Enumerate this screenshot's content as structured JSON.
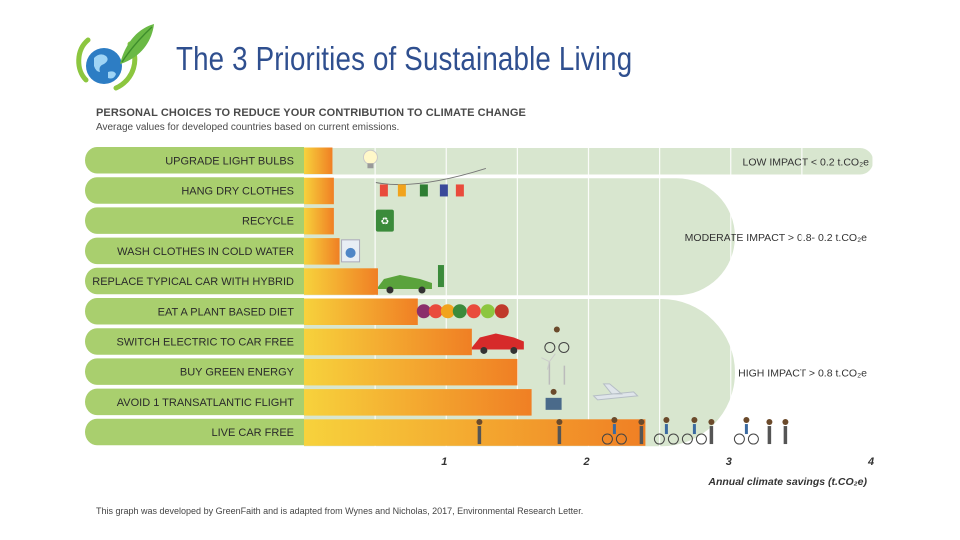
{
  "page": {
    "title": "The 3 Priorities of Sustainable Living",
    "logo_icon": "globe-leaf-icon"
  },
  "chart_heading": "PERSONAL CHOICES TO REDUCE YOUR CONTRIBUTION TO CLIMATE CHANGE",
  "chart_subheading": "Average values for developed countries based on current emissions.",
  "footnote": "This graph was developed by GreenFaith and is adapted from Wynes and Nicholas, 2017, Environmental Research Letter.",
  "colors": {
    "label_bar": "#a9cf6e",
    "zone_band": "#d8e6cf",
    "orange_start": "#f7d23c",
    "orange_end": "#f07f24",
    "grid": "#ffffff",
    "title": "#2f4f8f"
  },
  "chart_data": {
    "type": "bar",
    "orientation": "horizontal",
    "categories": [
      "UPGRADE LIGHT BULBS",
      "HANG DRY CLOTHES",
      "RECYCLE",
      "WASH CLOTHES IN COLD WATER",
      "REPLACE TYPICAL CAR WITH HYBRID",
      "EAT A PLANT BASED DIET",
      "SWITCH ELECTRIC TO CAR FREE",
      "BUY GREEN ENERGY",
      "AVOID 1 TRANSATLANTIC FLIGHT",
      "LIVE CAR FREE"
    ],
    "values": [
      0.2,
      0.21,
      0.21,
      0.25,
      0.52,
      0.8,
      1.18,
      1.5,
      1.6,
      2.4
    ],
    "xlim": [
      0,
      4
    ],
    "xticks": [
      "1",
      "2",
      "3",
      "4"
    ],
    "xlabel": "Annual climate savings (t.CO₂e)",
    "impact_zones": [
      {
        "label": "LOW IMPACT < 0.2 t.CO₂e",
        "rows": [
          0,
          0
        ]
      },
      {
        "label": "MODERATE IMPACT > 0.8- 0.2 t.CO₂e",
        "rows": [
          1,
          4
        ]
      },
      {
        "label": "HIGH IMPACT > 0.8 t.CO₂e",
        "rows": [
          5,
          9
        ]
      }
    ],
    "illustrations": [
      "light-bulb-icon",
      "clothesline-icon",
      "recycle-bin-icon",
      "washing-machine-icon",
      "hybrid-car-icon",
      "vegetables-icon",
      "red-car-icon",
      "wind-turbine-icon",
      "airplane-icon",
      "pedestrians-cyclists-icon"
    ]
  }
}
